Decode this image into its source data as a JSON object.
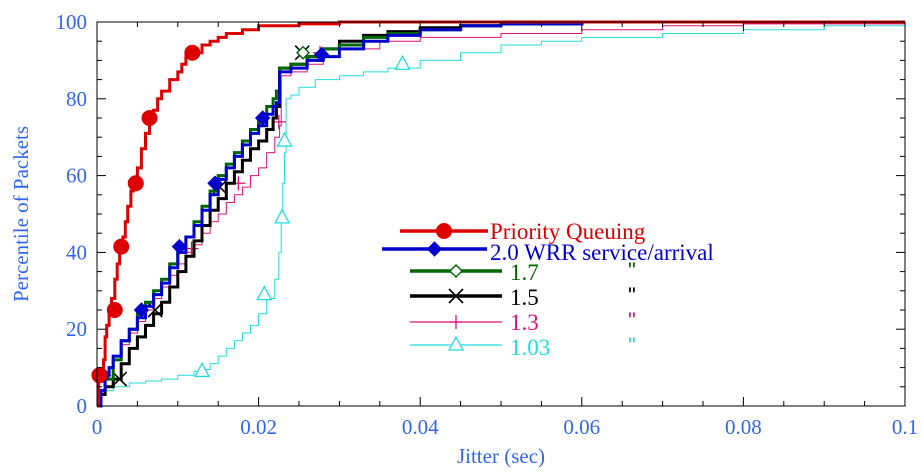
{
  "chart_data": {
    "type": "line",
    "title": "",
    "xlabel": "Jitter (sec)",
    "ylabel": "Percentile of Packets",
    "xlim": [
      0,
      0.1
    ],
    "ylim": [
      0,
      100
    ],
    "xticks": [
      "0",
      "0.02",
      "0.04",
      "0.06",
      "0.08",
      "0.1"
    ],
    "yticks": [
      "0",
      "20",
      "40",
      "60",
      "80",
      "100"
    ],
    "grid": false,
    "legend_position": "center-right",
    "axis_color": "#3366ee",
    "series": [
      {
        "name": "Priority Queuing",
        "legend_suffix": "",
        "color": "#dd0000",
        "marker": "circle",
        "line_width": 3,
        "points": [
          [
            0,
            0
          ],
          [
            0.0002,
            8
          ],
          [
            0.0006,
            8
          ],
          [
            0.0008,
            12
          ],
          [
            0.001,
            18
          ],
          [
            0.0012,
            21
          ],
          [
            0.0015,
            24
          ],
          [
            0.0018,
            28
          ],
          [
            0.0022,
            33
          ],
          [
            0.0025,
            37
          ],
          [
            0.0028,
            41
          ],
          [
            0.0032,
            44
          ],
          [
            0.0035,
            48
          ],
          [
            0.0038,
            52
          ],
          [
            0.0042,
            56
          ],
          [
            0.0045,
            58
          ],
          [
            0.005,
            62
          ],
          [
            0.0055,
            67
          ],
          [
            0.006,
            71
          ],
          [
            0.0065,
            74
          ],
          [
            0.007,
            77
          ],
          [
            0.0075,
            80
          ],
          [
            0.008,
            82
          ],
          [
            0.009,
            85
          ],
          [
            0.01,
            87
          ],
          [
            0.0105,
            89
          ],
          [
            0.011,
            91
          ],
          [
            0.012,
            92
          ],
          [
            0.013,
            94
          ],
          [
            0.014,
            95
          ],
          [
            0.015,
            96
          ],
          [
            0.016,
            97
          ],
          [
            0.018,
            98
          ],
          [
            0.02,
            99
          ],
          [
            0.025,
            99.5
          ],
          [
            0.03,
            100
          ],
          [
            0.1,
            100
          ]
        ],
        "markers": [
          [
            0.0003,
            8
          ],
          [
            0.0022,
            25
          ],
          [
            0.003,
            41.5
          ],
          [
            0.0048,
            58
          ],
          [
            0.0065,
            75
          ],
          [
            0.0118,
            92
          ]
        ]
      },
      {
        "name": "2.0 WRR service/arrival",
        "legend_suffix": "",
        "color": "#0000cc",
        "marker": "diamond",
        "line_width": 3,
        "points": [
          [
            0,
            0
          ],
          [
            0.0005,
            4
          ],
          [
            0.001,
            8
          ],
          [
            0.0015,
            10
          ],
          [
            0.002,
            13
          ],
          [
            0.003,
            17
          ],
          [
            0.004,
            20
          ],
          [
            0.005,
            23
          ],
          [
            0.006,
            26
          ],
          [
            0.007,
            29
          ],
          [
            0.008,
            32
          ],
          [
            0.009,
            36
          ],
          [
            0.01,
            40
          ],
          [
            0.011,
            44
          ],
          [
            0.012,
            47
          ],
          [
            0.013,
            51
          ],
          [
            0.014,
            55
          ],
          [
            0.015,
            59
          ],
          [
            0.016,
            62
          ],
          [
            0.017,
            65
          ],
          [
            0.018,
            68
          ],
          [
            0.019,
            71
          ],
          [
            0.02,
            73
          ],
          [
            0.021,
            76
          ],
          [
            0.0218,
            78
          ],
          [
            0.0222,
            79
          ],
          [
            0.0226,
            87
          ],
          [
            0.024,
            88
          ],
          [
            0.026,
            90
          ],
          [
            0.028,
            91
          ],
          [
            0.03,
            93
          ],
          [
            0.033,
            95
          ],
          [
            0.036,
            96.5
          ],
          [
            0.04,
            98
          ],
          [
            0.045,
            99
          ],
          [
            0.05,
            99.5
          ],
          [
            0.06,
            100
          ],
          [
            0.1,
            100
          ]
        ],
        "markers": [
          [
            0.0008,
            8
          ],
          [
            0.0055,
            25
          ],
          [
            0.0102,
            41.5
          ],
          [
            0.0146,
            58
          ],
          [
            0.0205,
            75
          ],
          [
            0.0278,
            91.5
          ]
        ]
      },
      {
        "name": "1.7",
        "legend_suffix": "\"",
        "color": "#006600",
        "marker": "open-diamond",
        "line_width": 3,
        "points": [
          [
            0,
            0
          ],
          [
            0.0005,
            4
          ],
          [
            0.001,
            7
          ],
          [
            0.002,
            12
          ],
          [
            0.003,
            17
          ],
          [
            0.004,
            20
          ],
          [
            0.005,
            24
          ],
          [
            0.006,
            27
          ],
          [
            0.007,
            30
          ],
          [
            0.008,
            33
          ],
          [
            0.009,
            37
          ],
          [
            0.01,
            41
          ],
          [
            0.011,
            44
          ],
          [
            0.012,
            48
          ],
          [
            0.013,
            52
          ],
          [
            0.014,
            56
          ],
          [
            0.015,
            60
          ],
          [
            0.016,
            63
          ],
          [
            0.017,
            66
          ],
          [
            0.018,
            69
          ],
          [
            0.019,
            72
          ],
          [
            0.02,
            75
          ],
          [
            0.021,
            78
          ],
          [
            0.0218,
            80
          ],
          [
            0.0222,
            82
          ],
          [
            0.0226,
            88
          ],
          [
            0.024,
            89
          ],
          [
            0.026,
            91
          ],
          [
            0.028,
            93
          ],
          [
            0.03,
            94
          ],
          [
            0.033,
            96
          ],
          [
            0.036,
            97
          ],
          [
            0.04,
            98
          ],
          [
            0.045,
            99
          ],
          [
            0.05,
            99.5
          ],
          [
            0.06,
            100
          ],
          [
            0.1,
            100
          ]
        ],
        "markers": [
          [
            0.0255,
            92
          ]
        ]
      },
      {
        "name": "1.5",
        "legend_suffix": "\"",
        "color": "#000000",
        "marker": "x",
        "line_width": 3,
        "points": [
          [
            0,
            0
          ],
          [
            0.0005,
            3
          ],
          [
            0.001,
            5
          ],
          [
            0.002,
            7
          ],
          [
            0.003,
            11
          ],
          [
            0.004,
            15
          ],
          [
            0.005,
            18
          ],
          [
            0.006,
            21
          ],
          [
            0.007,
            24
          ],
          [
            0.008,
            27
          ],
          [
            0.009,
            31
          ],
          [
            0.01,
            35
          ],
          [
            0.011,
            39
          ],
          [
            0.012,
            43
          ],
          [
            0.013,
            47
          ],
          [
            0.014,
            51
          ],
          [
            0.015,
            54
          ],
          [
            0.016,
            58
          ],
          [
            0.017,
            61
          ],
          [
            0.018,
            64
          ],
          [
            0.019,
            67
          ],
          [
            0.02,
            69
          ],
          [
            0.021,
            72
          ],
          [
            0.0218,
            75
          ],
          [
            0.0222,
            78
          ],
          [
            0.0226,
            88
          ],
          [
            0.024,
            89
          ],
          [
            0.026,
            91
          ],
          [
            0.028,
            93
          ],
          [
            0.03,
            95
          ],
          [
            0.033,
            96.5
          ],
          [
            0.036,
            97.5
          ],
          [
            0.04,
            98.5
          ],
          [
            0.045,
            99
          ],
          [
            0.05,
            99.5
          ],
          [
            0.06,
            100
          ],
          [
            0.1,
            100
          ]
        ],
        "markers": [
          [
            0.0028,
            7
          ],
          [
            0.0072,
            25
          ],
          [
            0.0152,
            57
          ],
          [
            0.0254,
            92
          ]
        ]
      },
      {
        "name": "1.3",
        "legend_suffix": "\"",
        "color": "#dd1177",
        "marker": "plus",
        "line_width": 1,
        "points": [
          [
            0,
            0
          ],
          [
            0.0005,
            3
          ],
          [
            0.001,
            7
          ],
          [
            0.002,
            12
          ],
          [
            0.003,
            16
          ],
          [
            0.004,
            19
          ],
          [
            0.005,
            22
          ],
          [
            0.006,
            25
          ],
          [
            0.007,
            28
          ],
          [
            0.008,
            31
          ],
          [
            0.009,
            34
          ],
          [
            0.01,
            37
          ],
          [
            0.011,
            40
          ],
          [
            0.012,
            42
          ],
          [
            0.013,
            45
          ],
          [
            0.014,
            48
          ],
          [
            0.015,
            50
          ],
          [
            0.016,
            53
          ],
          [
            0.017,
            55
          ],
          [
            0.018,
            57
          ],
          [
            0.019,
            60
          ],
          [
            0.02,
            62
          ],
          [
            0.021,
            66
          ],
          [
            0.022,
            70
          ],
          [
            0.0226,
            73
          ],
          [
            0.0228,
            86
          ],
          [
            0.024,
            87
          ],
          [
            0.026,
            89
          ],
          [
            0.028,
            91
          ],
          [
            0.03,
            93
          ],
          [
            0.035,
            95
          ],
          [
            0.04,
            96
          ],
          [
            0.05,
            97
          ],
          [
            0.06,
            98
          ],
          [
            0.07,
            99
          ],
          [
            0.08,
            99.5
          ],
          [
            0.1,
            100
          ]
        ],
        "markers": [
          [
            0.0117,
            41
          ],
          [
            0.0175,
            58
          ],
          [
            0.0225,
            74
          ],
          [
            0.0276,
            92
          ]
        ]
      },
      {
        "name": "1.03",
        "legend_suffix": "\"",
        "color": "#22dddd",
        "marker": "triangle",
        "line_width": 1,
        "points": [
          [
            0,
            0
          ],
          [
            0.0005,
            3
          ],
          [
            0.001,
            4
          ],
          [
            0.002,
            5
          ],
          [
            0.004,
            6
          ],
          [
            0.006,
            6.5
          ],
          [
            0.008,
            7
          ],
          [
            0.01,
            8
          ],
          [
            0.012,
            9
          ],
          [
            0.013,
            9.5
          ],
          [
            0.014,
            11
          ],
          [
            0.015,
            13
          ],
          [
            0.016,
            15
          ],
          [
            0.017,
            17
          ],
          [
            0.018,
            19
          ],
          [
            0.019,
            21
          ],
          [
            0.02,
            24
          ],
          [
            0.021,
            28
          ],
          [
            0.022,
            33
          ],
          [
            0.0225,
            40
          ],
          [
            0.0228,
            48
          ],
          [
            0.023,
            58
          ],
          [
            0.0232,
            66
          ],
          [
            0.0234,
            80
          ],
          [
            0.024,
            81
          ],
          [
            0.025,
            83
          ],
          [
            0.027,
            85
          ],
          [
            0.03,
            86
          ],
          [
            0.033,
            87
          ],
          [
            0.036,
            88
          ],
          [
            0.04,
            90
          ],
          [
            0.045,
            92
          ],
          [
            0.05,
            94
          ],
          [
            0.055,
            95
          ],
          [
            0.06,
            96
          ],
          [
            0.07,
            97
          ],
          [
            0.08,
            98
          ],
          [
            0.09,
            99
          ],
          [
            0.1,
            99.5
          ]
        ],
        "markers": [
          [
            0.013,
            9
          ],
          [
            0.0207,
            29
          ],
          [
            0.0229,
            49
          ],
          [
            0.0232,
            69
          ],
          [
            0.0378,
            89
          ]
        ]
      }
    ]
  }
}
